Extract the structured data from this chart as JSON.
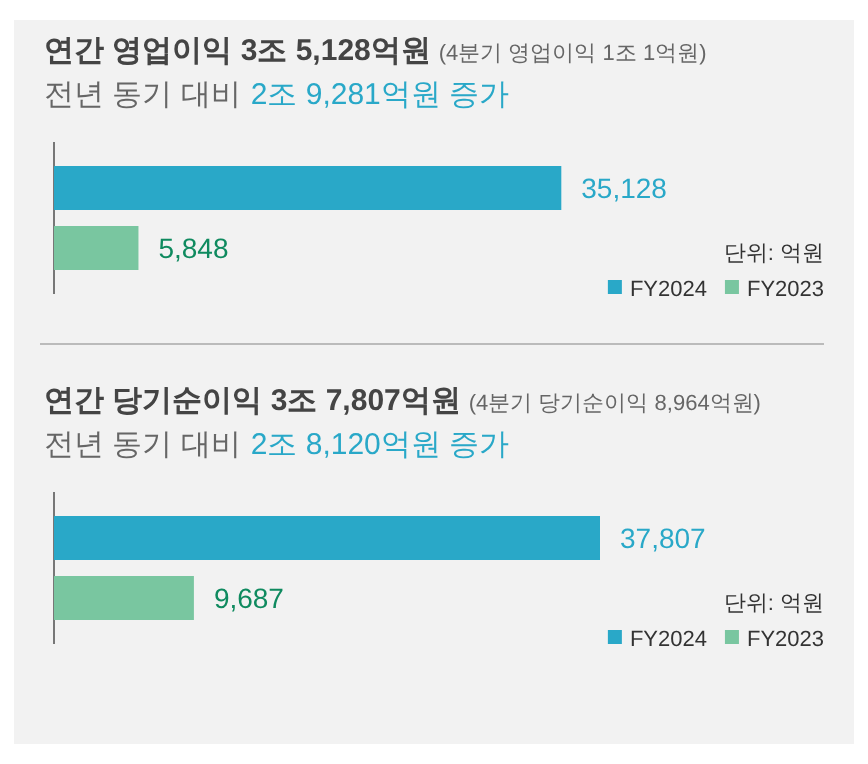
{
  "chart_data": [
    {
      "type": "bar",
      "orientation": "horizontal",
      "title": "연간 영업이익 3조 5,128억원",
      "subtitle": "전년 동기 대비",
      "categories": [
        null
      ],
      "legend": "bottom right",
      "annotations": [
        "(4분기 영업이익 1조 1억원)",
        "2조 9,281억원 증가",
        "단위: 억원"
      ],
      "series": [
        {
          "name": "FY2024",
          "color": "#29a8c8",
          "values": [
            35128
          ],
          "value_labels": [
            "35,128"
          ]
        },
        {
          "name": "FY2023",
          "color": "#79c6a0",
          "values": [
            5848
          ],
          "value_labels": [
            "5,848"
          ]
        }
      ]
    },
    {
      "type": "bar",
      "orientation": "horizontal",
      "title": "연간 당기순이익 3조 7,807억원",
      "subtitle": "전년 동기 대비",
      "categories": [
        null
      ],
      "legend": "bottom right",
      "annotations": [
        "(4분기 당기순이익 8,964억원)",
        "2조 8,120억원 증가",
        "단위: 억원"
      ],
      "series": [
        {
          "name": "FY2024",
          "color": "#29a8c8",
          "values": [
            37807
          ],
          "value_labels": [
            "37,807"
          ]
        },
        {
          "name": "FY2023",
          "color": "#79c6a0",
          "values": [
            9687
          ],
          "value_labels": [
            "9,687"
          ]
        }
      ]
    }
  ]
}
